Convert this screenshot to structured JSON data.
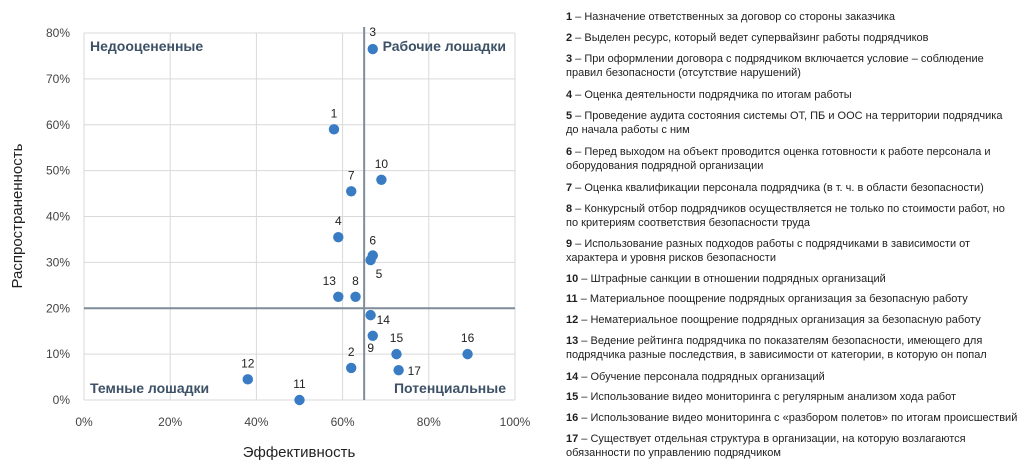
{
  "chart_data": {
    "type": "scatter",
    "xlabel": "Эффективность",
    "ylabel": "Распространенность",
    "xlim": [
      0,
      100
    ],
    "ylim": [
      0,
      80
    ],
    "x_ticks": [
      "0%",
      "20%",
      "40%",
      "60%",
      "80%",
      "100%"
    ],
    "y_ticks": [
      "0%",
      "10%",
      "20%",
      "30%",
      "40%",
      "50%",
      "60%",
      "70%",
      "80%"
    ],
    "threshold_x": 65,
    "threshold_y": 20,
    "quadrants": {
      "top_left": "Недооцененные",
      "top_right": "Рабочие лошадки",
      "bottom_left": "Темные лошадки",
      "bottom_right": "Потенциальные"
    },
    "points": [
      {
        "id": "1",
        "x": 58,
        "y": 59
      },
      {
        "id": "2",
        "x": 62,
        "y": 7
      },
      {
        "id": "3",
        "x": 67,
        "y": 76.5
      },
      {
        "id": "4",
        "x": 59,
        "y": 35.5
      },
      {
        "id": "5",
        "x": 66.5,
        "y": 30.5
      },
      {
        "id": "6",
        "x": 67,
        "y": 31.5
      },
      {
        "id": "7",
        "x": 62,
        "y": 45.5
      },
      {
        "id": "8",
        "x": 63,
        "y": 22.5
      },
      {
        "id": "9",
        "x": 67,
        "y": 14
      },
      {
        "id": "10",
        "x": 69,
        "y": 48
      },
      {
        "id": "11",
        "x": 50,
        "y": 0
      },
      {
        "id": "12",
        "x": 38,
        "y": 4.5
      },
      {
        "id": "13",
        "x": 59,
        "y": 22.5
      },
      {
        "id": "14",
        "x": 66.5,
        "y": 18.5
      },
      {
        "id": "15",
        "x": 72.5,
        "y": 10
      },
      {
        "id": "16",
        "x": 89,
        "y": 10
      },
      {
        "id": "17",
        "x": 73,
        "y": 6.5
      }
    ],
    "point_color": "#3a7cc4",
    "grid_color": "#d9d9d9",
    "threshold_color": "#7f8c99",
    "quadrant_label_color": "#3d5166"
  },
  "legend": [
    {
      "num": "1",
      "text": "– Назначение ответственных за договор со стороны заказчика"
    },
    {
      "num": "2",
      "text": "– Выделен ресурс, который ведет супервайзинг работы подрядчиков"
    },
    {
      "num": "3",
      "text": "– При оформлении договора с подрядчиком включается условие – соблюдение правил безопасности (отсутствие нарушений)"
    },
    {
      "num": "4",
      "text": "– Оценка деятельности подрядчика по итогам работы"
    },
    {
      "num": "5",
      "text": "– Проведение аудита состояния системы ОТ, ПБ и ООС на территории подрядчика до начала работы с ним"
    },
    {
      "num": "6",
      "text": "– Перед выходом на объект проводится оценка готовности к работе персонала и оборудования подрядной организации"
    },
    {
      "num": "7",
      "text": "– Оценка квалификации персонала подрядчика (в т. ч. в области безопасности)"
    },
    {
      "num": "8",
      "text": "– Конкурсный отбор подрядчиков осуществляется не только по стоимости работ, но по критериям соответствия безопасности труда"
    },
    {
      "num": "9",
      "text": "– Использование разных подходов работы с подрядчиками в зависимости от характера и уровня рисков безопасности"
    },
    {
      "num": "10",
      "text": "– Штрафные санкции в отношении подрядных организаций"
    },
    {
      "num": "11",
      "text": "– Материальное поощрение подрядных организация за безопасную работу"
    },
    {
      "num": "12",
      "text": "– Нематериальное поощрение подрядных организация за безопасную работу"
    },
    {
      "num": "13",
      "text": "– Ведение рейтинга подрядчика по показателям безопасности, имеющего для подрядчика разные последствия, в зависимости от категории, в которую он попал"
    },
    {
      "num": "14",
      "text": "– Обучение персонала подрядных организаций"
    },
    {
      "num": "15",
      "text": "– Использование видео мониторинга с регулярным анализом хода работ"
    },
    {
      "num": "16",
      "text": "– Использование видео мониторинга с «разбором полетов» по итогам происшествий"
    },
    {
      "num": "17",
      "text": "– Существует отдельная структура в организации, на которую возлагаются обязанности по управлению подрядчиком"
    }
  ]
}
